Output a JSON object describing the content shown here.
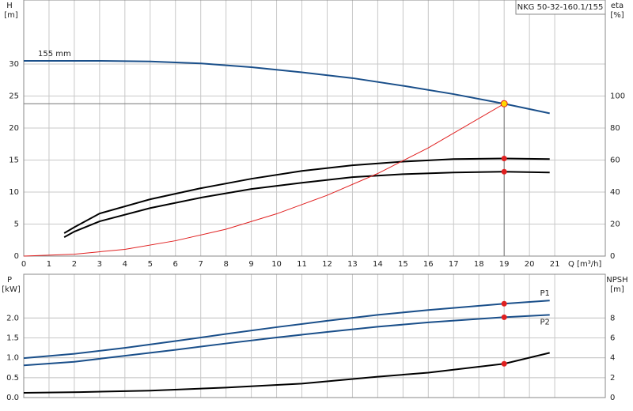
{
  "chart_data": [
    {
      "type": "line",
      "title": "NKG 50-32-160.1/155",
      "ylabel": "H",
      "yunit": "[m]",
      "y2label": "eta",
      "y2unit": "[%]",
      "xlabel": "Q [m³/h]",
      "xlim": [
        0,
        23
      ],
      "xticks": [
        0,
        1,
        2,
        3,
        4,
        5,
        6,
        7,
        8,
        9,
        10,
        11,
        12,
        13,
        14,
        15,
        16,
        17,
        18,
        19,
        20,
        21
      ],
      "ylim": [
        0,
        40
      ],
      "yticks": [
        0,
        5,
        10,
        15,
        20,
        25,
        30
      ],
      "y2lim": [
        0,
        160
      ],
      "y2ticks": [
        0,
        20,
        40,
        60,
        80,
        100
      ],
      "grid": true,
      "operating_point": {
        "x": 19,
        "y": 23.8
      },
      "series": [
        {
          "name": "155 mm",
          "color": "#1a4f8a",
          "x": [
            0,
            3,
            5,
            7,
            9,
            11,
            13,
            15,
            17,
            19,
            20.8
          ],
          "values": [
            30.5,
            30.5,
            30.4,
            30.1,
            29.5,
            28.7,
            27.8,
            26.6,
            25.3,
            23.8,
            22.3
          ]
        },
        {
          "color": "#000000",
          "axis": "y2",
          "x": [
            1.6,
            2,
            3,
            5,
            7,
            9,
            11,
            13,
            15,
            17,
            19,
            20.8
          ],
          "values": [
            14.3,
            18,
            26.6,
            35.5,
            42.4,
            48.3,
            53.2,
            56.7,
            59,
            60.6,
            61,
            60.6
          ]
        },
        {
          "color": "#000000",
          "axis": "y2",
          "x": [
            1.6,
            2,
            3,
            5,
            7,
            9,
            11,
            13,
            15,
            17,
            19,
            20.8
          ],
          "values": [
            11.8,
            15.3,
            21.7,
            30,
            36.5,
            41.9,
            45.8,
            49.3,
            51.2,
            52.2,
            52.7,
            52.2
          ]
        },
        {
          "color": "#e02020",
          "x": [
            0,
            2,
            4,
            6,
            8,
            10,
            12,
            14,
            16,
            19
          ],
          "values": [
            0,
            0.3,
            1.05,
            2.4,
            4.2,
            6.6,
            9.5,
            12.9,
            16.9,
            23.8
          ]
        }
      ]
    },
    {
      "type": "line",
      "ylabel": "P",
      "yunit": "[kW]",
      "y2label": "NPSH",
      "y2unit": "[m]",
      "ylim": [
        0,
        3.1
      ],
      "yticks": [
        {
          "value": 0,
          "label": "0.0"
        },
        {
          "value": 0.5,
          "label": "0.5"
        },
        {
          "value": 1,
          "label": "1.0"
        },
        {
          "value": 1.5,
          "label": "1.5"
        },
        {
          "value": 2,
          "label": "2.0"
        }
      ],
      "y2lim": [
        0,
        12.4
      ],
      "y2ticks": [
        0,
        2,
        4,
        6,
        8
      ],
      "grid": true,
      "series": [
        {
          "name": "P1",
          "color": "#1a4f8a",
          "x": [
            0,
            2,
            4,
            6,
            8,
            10,
            12,
            14,
            16,
            19,
            20.8
          ],
          "values": [
            0.99,
            1.1,
            1.25,
            1.42,
            1.6,
            1.77,
            1.93,
            2.08,
            2.2,
            2.36,
            2.44
          ]
        },
        {
          "name": "P2",
          "color": "#1a4f8a",
          "x": [
            0,
            2,
            4,
            6,
            8,
            10,
            12,
            14,
            16,
            19,
            20.8
          ],
          "values": [
            0.81,
            0.9,
            1.05,
            1.2,
            1.36,
            1.51,
            1.65,
            1.78,
            1.89,
            2.02,
            2.08
          ]
        },
        {
          "color": "#000000",
          "axis": "y2",
          "x": [
            0,
            2.2,
            5,
            8,
            11,
            14,
            16,
            19,
            20.8
          ],
          "values": [
            0.48,
            0.55,
            0.7,
            1,
            1.4,
            2.1,
            2.5,
            3.4,
            4.5
          ]
        }
      ]
    }
  ]
}
